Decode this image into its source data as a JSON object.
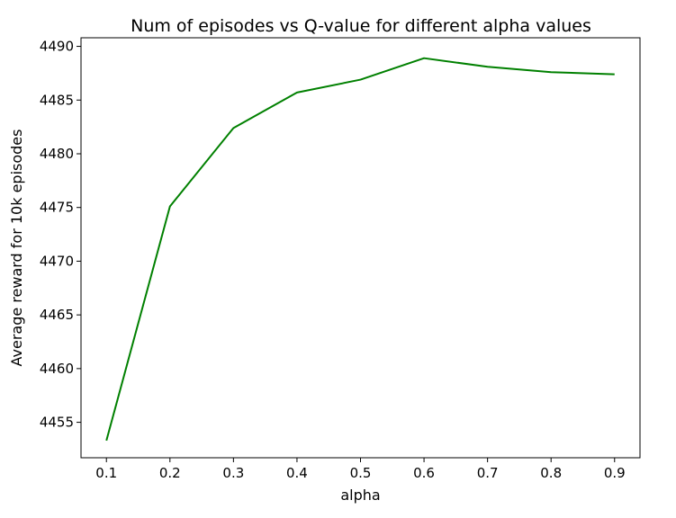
{
  "chart_data": {
    "type": "line",
    "title": "Num of episodes vs Q-value for different alpha values",
    "xlabel": "alpha",
    "ylabel": "Average reward for 10k episodes",
    "x": [
      0.1,
      0.2,
      0.3,
      0.4,
      0.5,
      0.6,
      0.7,
      0.8,
      0.9
    ],
    "x_tick_labels": [
      "0.1",
      "0.2",
      "0.3",
      "0.4",
      "0.5",
      "0.6",
      "0.7",
      "0.8",
      "0.9"
    ],
    "y_ticks": [
      4455,
      4460,
      4465,
      4470,
      4475,
      4480,
      4485,
      4490
    ],
    "y_tick_labels": [
      "4455",
      "4460",
      "4465",
      "4470",
      "4475",
      "4480",
      "4485",
      "4490"
    ],
    "series": [
      {
        "values": [
          4453.3,
          4475.1,
          4482.4,
          4485.7,
          4486.9,
          4488.9,
          4488.1,
          4487.6,
          4487.4
        ],
        "color": "#008000"
      }
    ],
    "xlim": [
      0.06,
      0.94
    ],
    "ylim": [
      4451.7,
      4490.8
    ],
    "grid": false,
    "legend": false
  }
}
